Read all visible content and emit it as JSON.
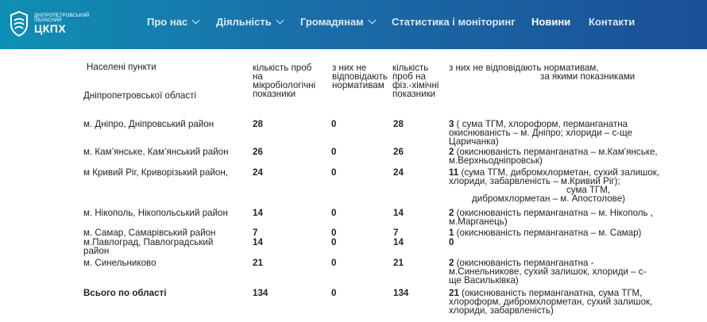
{
  "header": {
    "logo": {
      "small": "Дніпропетровський обласний",
      "big": "ЦКПХ"
    },
    "nav": [
      {
        "label": "Про нас",
        "dropdown": true
      },
      {
        "label": "Діяльність",
        "dropdown": true
      },
      {
        "label": "Громадянам",
        "dropdown": true
      },
      {
        "label": "Статистика і моніторинг",
        "dropdown": false
      },
      {
        "label": "Новини",
        "dropdown": false,
        "active": true
      },
      {
        "label": "Контакти",
        "dropdown": false
      }
    ]
  },
  "table": {
    "headers": {
      "settlements": {
        "line1": "Населені пункти",
        "line2": "Дніпропетровської області"
      },
      "micro_count": [
        "кількість проб",
        "на",
        "мікробіологічні",
        "показники"
      ],
      "micro_noncompliant": [
        "з них не",
        "відповідають",
        "нормативам"
      ],
      "chem_count": [
        "кількість",
        "проб на",
        "фіз.-хімічні",
        "показники"
      ],
      "chem_noncompliant": [
        "з них не відповідають нормативам,",
        "за якими показниками"
      ]
    },
    "rows": [
      {
        "name": "м. Дніпро, Дніпровський район",
        "micro": "28",
        "micro_bad": "0",
        "chem": "28",
        "chem_bad": [
          "3",
          " ( сума ТГМ,  хлороформ, перманганатна",
          "окиснюваність – м. Дніпро;  хлориди  – с-ще",
          "Царичанка)"
        ]
      },
      {
        "name": "м. Кам’янське,  Кам’янський район",
        "micro": "26",
        "micro_bad": "0",
        "chem": "26",
        "chem_bad": [
          "2",
          "  (окиснюваність перманганатна –  м.Кам’янське,",
          "м.Верхньодніпровськ)"
        ]
      },
      {
        "name": "м Кривий Ріг, Криворізький район,",
        "micro": "24",
        "micro_bad": "0",
        "chem": "24",
        "chem_bad": [
          "11",
          " (сума ТГМ, дибромхлорметан, сухий залишок,",
          "хлориди, забарвленість  – м.Кривий Ріг);",
          "сума ТГМ,",
          "дибромхлорметан – м. Апостолове)"
        ]
      },
      {
        "name": "м. Нікополь, Нікопольський район",
        "micro": "14",
        "micro_bad": "0",
        "chem": "14",
        "chem_bad": [
          "2",
          " (окиснюваність перманганатна – м. Нікополь ,",
          " м.Марганець)"
        ]
      },
      {
        "name": "м. Самар, Самарівський район",
        "micro": "7",
        "micro_bad": "0",
        "chem": "7",
        "chem_bad": [
          "1",
          " (окиснюваність перманганатна – м. Самар)"
        ]
      },
      {
        "name": "м.Павлоград, Павлоградський",
        "name2": "район",
        "micro": "14",
        "micro_bad": "0",
        "chem": "14",
        "chem_bad": [
          "0"
        ]
      },
      {
        "name": "м. Синельниково",
        "micro": "21",
        "micro_bad": "0",
        "chem": "21",
        "chem_bad": [
          "2",
          "  (окиснюваність перманганатна  -",
          "м.Синельникове,        сухий залишок, хлориди –  с-",
          "ще Васильківка)"
        ]
      },
      {
        "name": "Всього по області",
        "micro": "134",
        "micro_bad": "0",
        "chem": "134",
        "chem_bad": [
          "21",
          " (окиснюваність перманганатна, сума ТГМ,",
          "хлороформ, дибромхлорметан, сухий залишок,",
          "хлориди, забарвленість)"
        ]
      }
    ]
  }
}
